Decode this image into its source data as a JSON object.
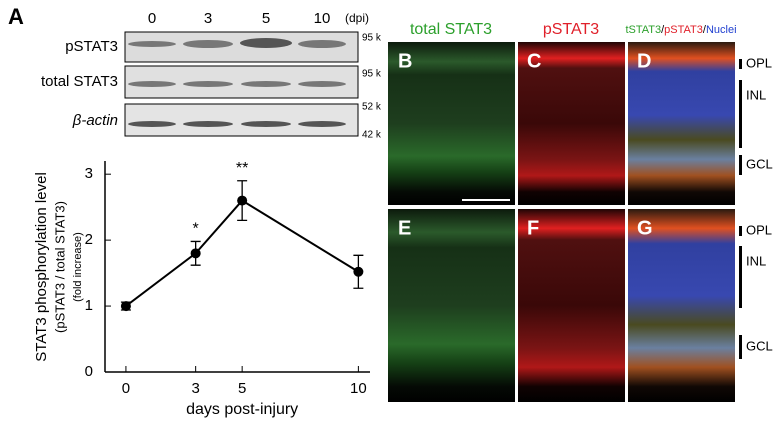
{
  "panel_labels": [
    "A",
    "B",
    "C",
    "D",
    "E",
    "F",
    "G"
  ],
  "blot": {
    "lanes": [
      "0",
      "3",
      "5",
      "10"
    ],
    "unit": "(dpi)",
    "rows": [
      "pSTAT3",
      "total STAT3",
      "β-actin"
    ],
    "markers": [
      "95 k",
      "95 k",
      "52 k",
      "42 k"
    ]
  },
  "micrographs": {
    "titles": [
      "total STAT3",
      "pSTAT3"
    ],
    "merge_title": [
      "tSTAT3",
      "/",
      "pSTAT3",
      "/",
      "Nuclei"
    ],
    "layers": [
      "OPL",
      "INL",
      "GCL",
      "OPL",
      "INL",
      "GCL"
    ]
  },
  "chart_data": {
    "type": "line",
    "xlabel": "days post-injury",
    "ylabel": [
      "STAT3 phosphorylation level",
      "(pSTAT3 / total STAT3)",
      "(fold increase)"
    ],
    "x": [
      0,
      3,
      5,
      10
    ],
    "values": [
      1.0,
      1.8,
      2.6,
      1.52
    ],
    "errors": [
      0.06,
      0.18,
      0.3,
      0.25
    ],
    "color": "#000000",
    "xlim": [
      -0.9,
      10.5
    ],
    "xticks": [
      0,
      3,
      5,
      10
    ],
    "ylim": [
      0,
      3.2
    ],
    "yticks": [
      0,
      1,
      2,
      3
    ],
    "annotations": [
      {
        "text": "*",
        "x": 3
      },
      {
        "text": "**",
        "x": 5
      }
    ]
  }
}
